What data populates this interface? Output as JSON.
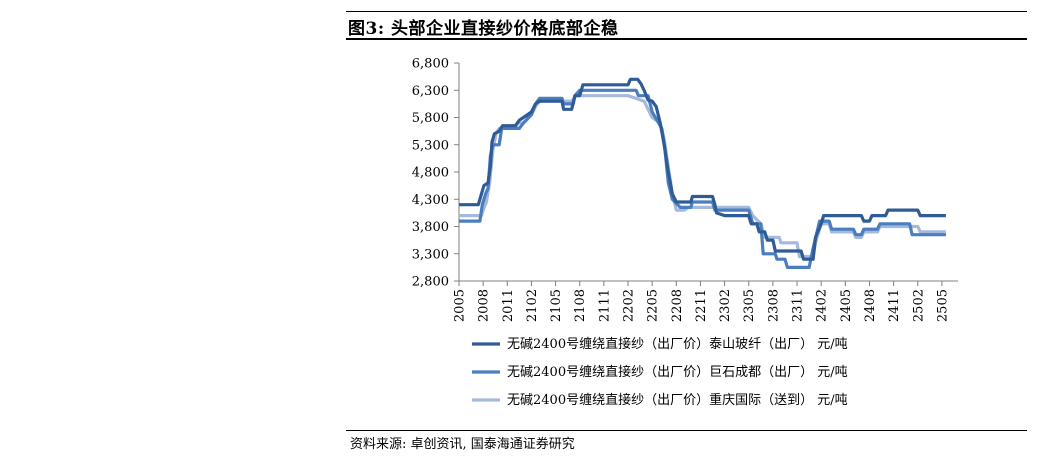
{
  "figure": {
    "title": "图3: 头部企业直接纱价格底部企稳",
    "source": "资料来源: 卓创资讯, 国泰海通证券研究"
  },
  "chart_data": {
    "type": "line",
    "title": "图3: 头部企业直接纱价格底部企稳",
    "xlabel": "",
    "ylabel": "",
    "ylim": [
      2800,
      6800
    ],
    "y_ticks": [
      "2,800",
      "3,300",
      "3,800",
      "4,300",
      "4,800",
      "5,300",
      "5,800",
      "6,300",
      "6,800"
    ],
    "y_tick_values": [
      2800,
      3300,
      3800,
      4300,
      4800,
      5300,
      5800,
      6300,
      6800
    ],
    "x_ticks": [
      "2005",
      "2008",
      "2011",
      "2102",
      "2105",
      "2108",
      "2111",
      "2202",
      "2205",
      "2208",
      "2211",
      "2302",
      "2305",
      "2308",
      "2311",
      "2402",
      "2405",
      "2408",
      "2411",
      "2502",
      "2505"
    ],
    "x_range_months": [
      0,
      62
    ],
    "grid": false,
    "legend_position": "bottom",
    "series": [
      {
        "name": "无碱2400号缠绕直接纱（出厂价）泰山玻纤（出厂） 元/吨",
        "color": "#2F5C97",
        "points": [
          [
            0,
            4200
          ],
          [
            2.4,
            4200
          ],
          [
            2.6,
            4300
          ],
          [
            3.1,
            4550
          ],
          [
            3.6,
            4600
          ],
          [
            3.9,
            4900
          ],
          [
            4.1,
            5350
          ],
          [
            4.4,
            5500
          ],
          [
            5,
            5550
          ],
          [
            5.4,
            5650
          ],
          [
            7,
            5650
          ],
          [
            7.5,
            5750
          ],
          [
            8,
            5800
          ],
          [
            9,
            5900
          ],
          [
            9.5,
            6050
          ],
          [
            10,
            6100
          ],
          [
            12.8,
            6100
          ],
          [
            13,
            5950
          ],
          [
            14,
            5950
          ],
          [
            14.4,
            6200
          ],
          [
            15,
            6200
          ],
          [
            15.4,
            6400
          ],
          [
            16,
            6400
          ],
          [
            21,
            6400
          ],
          [
            21.3,
            6500
          ],
          [
            22.2,
            6500
          ],
          [
            22.6,
            6420
          ],
          [
            23,
            6300
          ],
          [
            23.5,
            6120
          ],
          [
            24,
            6100
          ],
          [
            24.5,
            6000
          ],
          [
            25,
            5700
          ],
          [
            25.5,
            5300
          ],
          [
            26,
            4800
          ],
          [
            26.5,
            4400
          ],
          [
            27,
            4250
          ],
          [
            28.8,
            4250
          ],
          [
            29,
            4350
          ],
          [
            31.5,
            4350
          ],
          [
            31.8,
            4200
          ],
          [
            32,
            4050
          ],
          [
            33,
            4000
          ],
          [
            36,
            4000
          ],
          [
            36.3,
            3850
          ],
          [
            37,
            3850
          ],
          [
            37.3,
            3700
          ],
          [
            38,
            3700
          ],
          [
            38.3,
            3550
          ],
          [
            39,
            3550
          ],
          [
            39.3,
            3350
          ],
          [
            42.5,
            3350
          ],
          [
            42.8,
            3200
          ],
          [
            44,
            3200
          ],
          [
            44.3,
            3600
          ],
          [
            45,
            3850
          ],
          [
            45.3,
            4000
          ],
          [
            50,
            4000
          ],
          [
            50.3,
            3900
          ],
          [
            51,
            3900
          ],
          [
            51.3,
            4000
          ],
          [
            53,
            4000
          ],
          [
            53.3,
            4100
          ],
          [
            57,
            4100
          ],
          [
            57.3,
            4000
          ],
          [
            60.5,
            4000
          ]
        ]
      },
      {
        "name": "无碱2400号缠绕直接纱（出厂价）巨石成都（出厂） 元/吨",
        "color": "#4A7EC0",
        "points": [
          [
            0,
            3900
          ],
          [
            2.6,
            3900
          ],
          [
            2.9,
            4200
          ],
          [
            3.3,
            4400
          ],
          [
            3.6,
            4500
          ],
          [
            3.9,
            5100
          ],
          [
            4.2,
            5300
          ],
          [
            5,
            5300
          ],
          [
            5.3,
            5600
          ],
          [
            6,
            5600
          ],
          [
            7.5,
            5600
          ],
          [
            8,
            5700
          ],
          [
            9,
            5850
          ],
          [
            9.5,
            6050
          ],
          [
            10,
            6150
          ],
          [
            12.8,
            6150
          ],
          [
            13,
            6050
          ],
          [
            14.2,
            6050
          ],
          [
            14.4,
            6200
          ],
          [
            15,
            6300
          ],
          [
            15.4,
            6300
          ],
          [
            20,
            6300
          ],
          [
            21,
            6300
          ],
          [
            22,
            6300
          ],
          [
            22.3,
            6200
          ],
          [
            23.5,
            6200
          ],
          [
            24,
            5900
          ],
          [
            24.8,
            5700
          ],
          [
            25.2,
            5600
          ],
          [
            25.6,
            5200
          ],
          [
            26,
            4600
          ],
          [
            26.5,
            4300
          ],
          [
            27.5,
            4150
          ],
          [
            28.8,
            4150
          ],
          [
            29,
            4250
          ],
          [
            31.5,
            4250
          ],
          [
            31.8,
            4100
          ],
          [
            36,
            4100
          ],
          [
            36.5,
            3850
          ],
          [
            37.5,
            3850
          ],
          [
            37.8,
            3300
          ],
          [
            39.3,
            3300
          ],
          [
            39.5,
            3200
          ],
          [
            40.5,
            3200
          ],
          [
            40.8,
            3050
          ],
          [
            43.5,
            3050
          ],
          [
            44,
            3400
          ],
          [
            44.8,
            3900
          ],
          [
            46,
            3900
          ],
          [
            46.3,
            3750
          ],
          [
            49,
            3750
          ],
          [
            49.3,
            3650
          ],
          [
            50,
            3650
          ],
          [
            50.3,
            3750
          ],
          [
            52,
            3750
          ],
          [
            52.3,
            3850
          ],
          [
            56,
            3850
          ],
          [
            56.3,
            3650
          ],
          [
            60.5,
            3650
          ]
        ]
      },
      {
        "name": "无碱2400号缠绕直接纱（出厂价）重庆国际（送到） 元/吨",
        "color": "#A4B9DB",
        "points": [
          [
            0,
            4000
          ],
          [
            2.8,
            4000
          ],
          [
            3,
            4100
          ],
          [
            3.4,
            4250
          ],
          [
            3.8,
            4600
          ],
          [
            4.2,
            5200
          ],
          [
            4.6,
            5500
          ],
          [
            5,
            5600
          ],
          [
            7,
            5600
          ],
          [
            7.3,
            5700
          ],
          [
            8,
            5700
          ],
          [
            9,
            5850
          ],
          [
            9.5,
            6000
          ],
          [
            10,
            6100
          ],
          [
            13.5,
            6100
          ],
          [
            14,
            6100
          ],
          [
            14.5,
            6200
          ],
          [
            15,
            6200
          ],
          [
            16,
            6200
          ],
          [
            21,
            6200
          ],
          [
            22,
            6150
          ],
          [
            23,
            6100
          ],
          [
            23.5,
            5950
          ],
          [
            24,
            5800
          ],
          [
            25,
            5700
          ],
          [
            25.5,
            5400
          ],
          [
            26,
            4900
          ],
          [
            26.5,
            4400
          ],
          [
            27,
            4100
          ],
          [
            28,
            4100
          ],
          [
            28.5,
            4150
          ],
          [
            31.5,
            4150
          ],
          [
            32,
            4150
          ],
          [
            36,
            4150
          ],
          [
            36.5,
            4000
          ],
          [
            37.5,
            3850
          ],
          [
            38,
            3600
          ],
          [
            39.8,
            3600
          ],
          [
            40,
            3500
          ],
          [
            42,
            3500
          ],
          [
            42.3,
            3250
          ],
          [
            44,
            3250
          ],
          [
            44.3,
            3500
          ],
          [
            45,
            3850
          ],
          [
            46,
            3850
          ],
          [
            46.3,
            3700
          ],
          [
            49,
            3700
          ],
          [
            49.3,
            3600
          ],
          [
            50,
            3600
          ],
          [
            50.3,
            3700
          ],
          [
            52,
            3700
          ],
          [
            52.3,
            3800
          ],
          [
            57,
            3800
          ],
          [
            57.3,
            3700
          ],
          [
            60.5,
            3700
          ]
        ]
      }
    ]
  }
}
